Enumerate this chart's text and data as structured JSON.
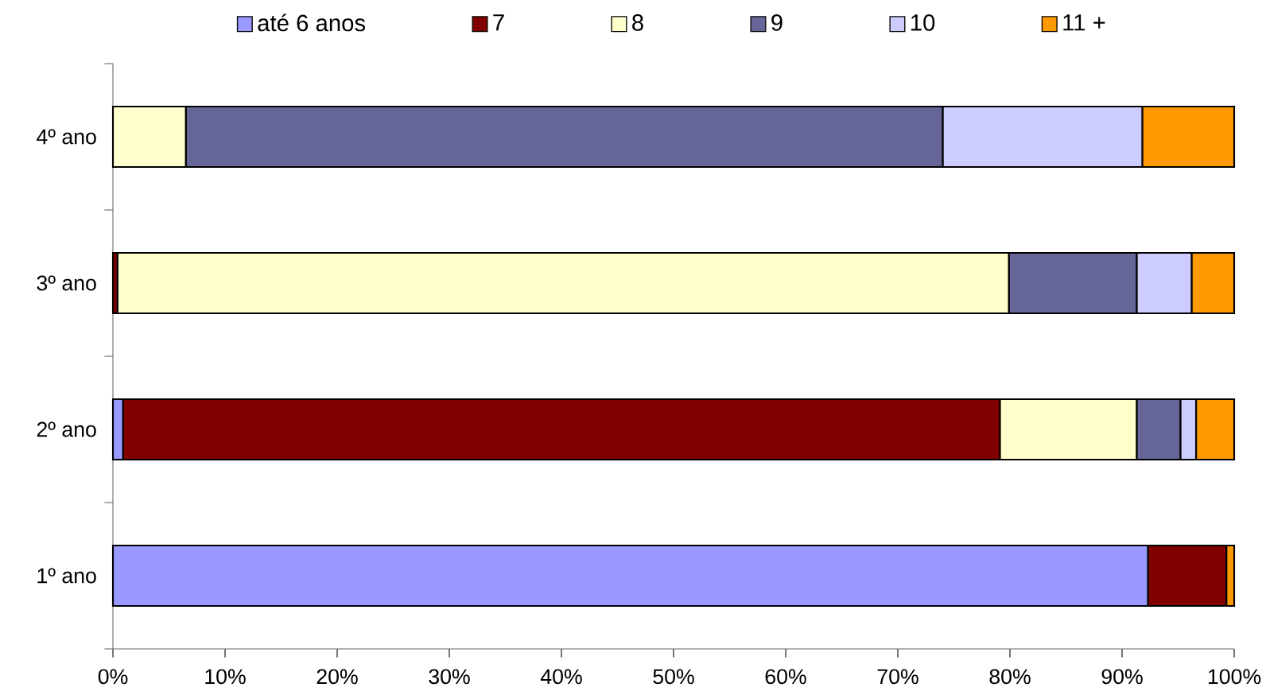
{
  "chart_data": {
    "type": "bar",
    "orientation": "horizontal",
    "stacked": true,
    "legend": "top",
    "grid": false,
    "categories": [
      "4º ano",
      "3º ano",
      "2º ano",
      "1º ano"
    ],
    "series": [
      {
        "name": "até 6 anos",
        "color": "#9999ff",
        "values": [
          null,
          null,
          0.9,
          92.3
        ]
      },
      {
        "name": "7",
        "color": "#800000",
        "values": [
          null,
          0.4,
          78.2,
          7.0
        ]
      },
      {
        "name": "8",
        "color": "#ffffcc",
        "values": [
          6.5,
          79.5,
          12.2,
          null
        ]
      },
      {
        "name": "9",
        "color": "#666699",
        "values": [
          67.5,
          11.4,
          3.9,
          null
        ]
      },
      {
        "name": "10",
        "color": "#ccccff",
        "values": [
          17.8,
          4.9,
          1.4,
          null
        ]
      },
      {
        "name": "11 +",
        "color": "#ff9900",
        "values": [
          8.2,
          3.8,
          3.4,
          0.7
        ]
      }
    ],
    "xlim": [
      0,
      100
    ],
    "xticks": [
      {
        "value": 0,
        "label": "0%"
      },
      {
        "value": 10,
        "label": "10%"
      },
      {
        "value": 20,
        "label": "20%"
      },
      {
        "value": 30,
        "label": "30%"
      },
      {
        "value": 40,
        "label": "40%"
      },
      {
        "value": 50,
        "label": "50%"
      },
      {
        "value": 60,
        "label": "60%"
      },
      {
        "value": 70,
        "label": "70%"
      },
      {
        "value": 80,
        "label": "80%"
      },
      {
        "value": 90,
        "label": "90%"
      },
      {
        "value": 100,
        "label": "100%"
      }
    ]
  }
}
